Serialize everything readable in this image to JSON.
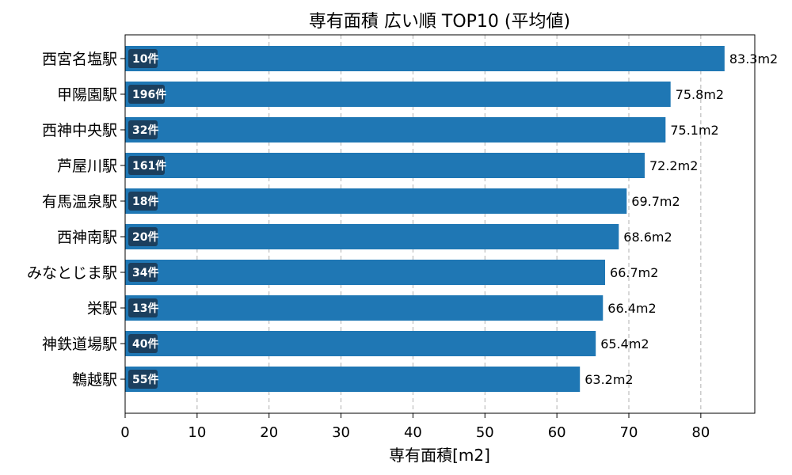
{
  "chart_data": {
    "type": "bar",
    "orientation": "horizontal",
    "title": "専有面積 広い順 TOP10 (平均値)",
    "xlabel": "専有面積[m2]",
    "ylabel": "",
    "xlim": [
      0,
      87.5
    ],
    "xticks": [
      0,
      10,
      20,
      30,
      40,
      50,
      60,
      70,
      80
    ],
    "grid": "x-dashed",
    "bar_color": "#1f77b4",
    "badge_color": "#1b3f5e",
    "categories": [
      "西宮名塩駅",
      "甲陽園駅",
      "西神中央駅",
      "芦屋川駅",
      "有馬温泉駅",
      "西神南駅",
      "みなとじま駅",
      "栄駅",
      "神鉄道場駅",
      "鵯越駅"
    ],
    "values": [
      83.3,
      75.8,
      75.1,
      72.2,
      69.7,
      68.6,
      66.7,
      66.4,
      65.4,
      63.2
    ],
    "value_labels": [
      "83.3m2",
      "75.8m2",
      "75.1m2",
      "72.2m2",
      "69.7m2",
      "68.6m2",
      "66.7m2",
      "66.4m2",
      "65.4m2",
      "63.2m2"
    ],
    "counts": [
      "10件",
      "196件",
      "32件",
      "161件",
      "18件",
      "20件",
      "34件",
      "13件",
      "40件",
      "55件"
    ]
  }
}
